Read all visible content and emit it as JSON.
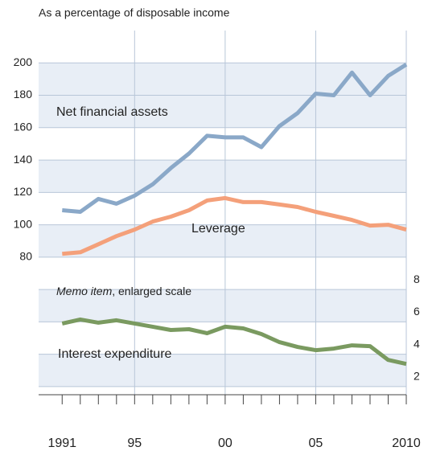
{
  "chart_data": {
    "type": "line",
    "subtitle": "As a percentage of disposable income",
    "x": [
      1991,
      1992,
      1993,
      1994,
      1995,
      1996,
      1997,
      1998,
      1999,
      2000,
      2001,
      2002,
      2003,
      2004,
      2005,
      2006,
      2007,
      2008,
      2009,
      2010
    ],
    "xlim": [
      1989.7,
      2010
    ],
    "xticks": [
      {
        "value": 1991,
        "label": "1991"
      },
      {
        "value": 1995,
        "label": "95"
      },
      {
        "value": 2000,
        "label": "00"
      },
      {
        "value": 2005,
        "label": "05"
      },
      {
        "value": 2010,
        "label": "2010"
      }
    ],
    "ylim": [
      -5,
      220
    ],
    "yticks": [
      80,
      100,
      120,
      140,
      160,
      180,
      200
    ],
    "y2lim": [
      1.5,
      24
    ],
    "y2ticks": [
      2,
      4,
      6,
      8
    ],
    "grid": true,
    "series": [
      {
        "name": "Net financial assets",
        "color": "#8aa8c8",
        "values": [
          109,
          108,
          116,
          113,
          118,
          125,
          135,
          144,
          155,
          154,
          154,
          148,
          161,
          169,
          181,
          180,
          194,
          180,
          192,
          199
        ]
      },
      {
        "name": "Leverage",
        "color": "#f4a07a",
        "values": [
          82,
          83,
          88,
          93,
          97,
          102,
          105,
          109,
          115,
          116.5,
          114,
          114,
          112.5,
          111,
          108,
          105.5,
          103,
          99.5,
          100,
          97
        ]
      },
      {
        "name": "Interest expenditure",
        "color": "#7a9a60",
        "axis": "y2",
        "values": [
          5.9,
          6.15,
          5.95,
          6.1,
          5.9,
          5.7,
          5.5,
          5.55,
          5.3,
          5.7,
          5.6,
          5.25,
          4.75,
          4.45,
          4.25,
          4.35,
          4.55,
          4.5,
          3.65,
          3.4
        ]
      }
    ],
    "annotations": [
      "Memo item",
      ", enlarged scale"
    ]
  }
}
